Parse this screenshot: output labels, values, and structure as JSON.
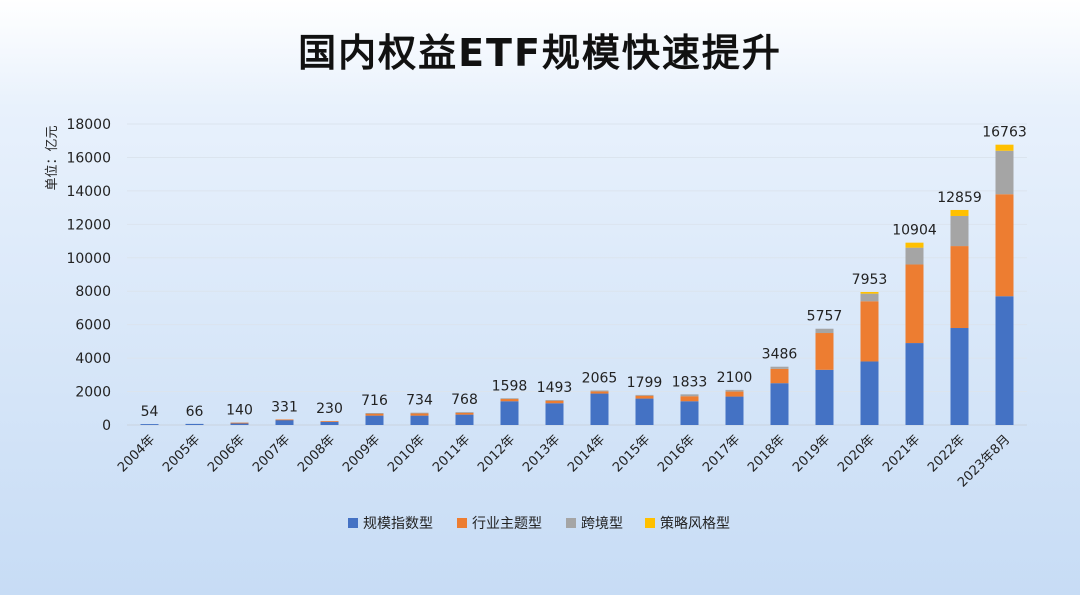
{
  "title": "国内权益ETF规模快速提升",
  "chart_data": {
    "type": "bar",
    "stacked": true,
    "ylabel": "单位：亿元",
    "ylim": [
      0,
      18000
    ],
    "yticks": [
      0,
      2000,
      4000,
      6000,
      8000,
      10000,
      12000,
      14000,
      16000,
      18000
    ],
    "grid": true,
    "legend": "bottom",
    "categories": [
      "2004年",
      "2005年",
      "2006年",
      "2007年",
      "2008年",
      "2009年",
      "2010年",
      "2011年",
      "2012年",
      "2013年",
      "2014年",
      "2015年",
      "2016年",
      "2017年",
      "2018年",
      "2019年",
      "2020年",
      "2021年",
      "2022年",
      "2023年8月"
    ],
    "totals": [
      54,
      66,
      140,
      331,
      230,
      716,
      734,
      768,
      1598,
      1493,
      2065,
      1799,
      1833,
      2100,
      3486,
      5757,
      7953,
      10904,
      12859,
      16763
    ],
    "series": [
      {
        "name": "规模指数型",
        "color": "#4472c4",
        "values": [
          54,
          66,
          130,
          310,
          210,
          560,
          560,
          620,
          1420,
          1300,
          1880,
          1580,
          1420,
          1700,
          2500,
          3300,
          3800,
          4900,
          5800,
          7700
        ]
      },
      {
        "name": "行业主题型",
        "color": "#ed7d31",
        "values": [
          0,
          0,
          10,
          21,
          20,
          150,
          160,
          130,
          150,
          160,
          130,
          170,
          300,
          300,
          860,
          2200,
          3600,
          4700,
          4900,
          6100
        ]
      },
      {
        "name": "跨境型",
        "color": "#a5a5a5",
        "values": [
          0,
          0,
          0,
          0,
          0,
          6,
          14,
          18,
          28,
          33,
          55,
          49,
          113,
          100,
          126,
          257,
          453,
          1004,
          1800,
          2600
        ]
      },
      {
        "name": "策略风格型",
        "color": "#ffc000",
        "values": [
          0,
          0,
          0,
          0,
          0,
          0,
          0,
          0,
          0,
          0,
          0,
          0,
          0,
          0,
          0,
          0,
          100,
          300,
          359,
          363
        ]
      }
    ]
  }
}
